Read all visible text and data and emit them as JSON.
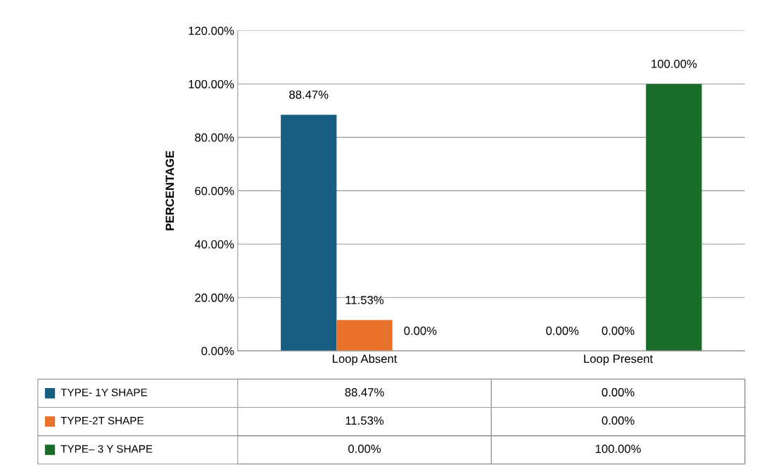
{
  "chart_data": {
    "type": "bar",
    "ylabel": "PERCENTAGE",
    "categories": [
      "Loop Absent",
      "Loop Present"
    ],
    "series": [
      {
        "name": "TYPE- 1Y SHAPE",
        "color": "#175e82",
        "values": [
          88.47,
          0
        ],
        "value_labels": [
          "88.47%",
          "0.00%"
        ]
      },
      {
        "name": "TYPE-2T SHAPE",
        "color": "#e8722c",
        "values": [
          11.53,
          0
        ],
        "value_labels": [
          "11.53%",
          "0.00%"
        ]
      },
      {
        "name": "TYPE– 3 Y SHAPE",
        "color": "#1a6b27",
        "values": [
          0,
          100
        ],
        "value_labels": [
          "0.00%",
          "100.00%"
        ]
      }
    ],
    "ylim": [
      0,
      120
    ],
    "yticks": [
      {
        "value": 0,
        "label": "0.00%"
      },
      {
        "value": 20,
        "label": "20.00%"
      },
      {
        "value": 40,
        "label": "40.00%"
      },
      {
        "value": 60,
        "label": "60.00%"
      },
      {
        "value": 80,
        "label": "80.00%"
      },
      {
        "value": 100,
        "label": "100.00%"
      },
      {
        "value": 120,
        "label": "120.00%"
      }
    ],
    "grid": "y",
    "legend": "bottom"
  }
}
